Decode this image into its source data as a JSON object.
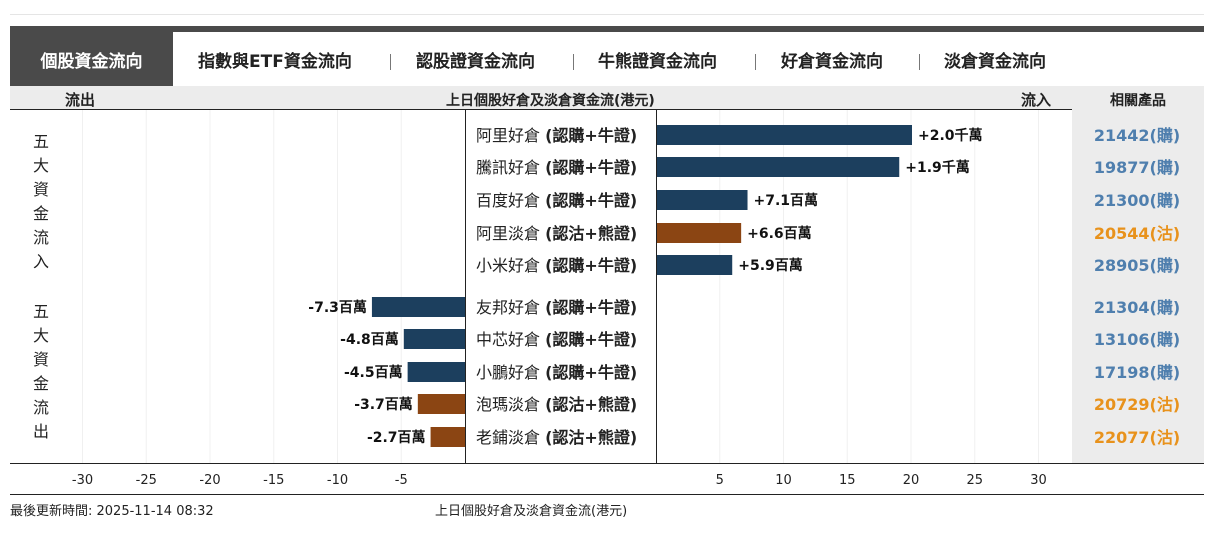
{
  "tabs": {
    "active": "個股資金流向",
    "items": [
      "指數與ETF資金流向",
      "認股證資金流向",
      "牛熊證資金流向",
      "好倉資金流向",
      "淡倉資金流向"
    ]
  },
  "subheader": {
    "outflow": "流出",
    "title": "上日個股好倉及淡倉資金流(港元)",
    "inflow": "流入",
    "products": "相關產品"
  },
  "side_labels": {
    "inflow": [
      "五",
      "大",
      "資",
      "金",
      "流",
      "入"
    ],
    "outflow": [
      "五",
      "大",
      "資",
      "金",
      "流",
      "出"
    ]
  },
  "colors": {
    "bull": "#1c3f5e",
    "bear": "#8b4513",
    "call_code": "#4f7fae",
    "put_code": "#e8921c"
  },
  "chart_data": {
    "type": "bar",
    "orientation": "horizontal",
    "xlim": [
      -30,
      30
    ],
    "x_ticks": [
      -30,
      -25,
      -20,
      -15,
      -10,
      -5,
      5,
      10,
      15,
      20,
      25,
      30
    ],
    "grid": true,
    "title": "上日個股好倉及淡倉資金流(港元)",
    "rows": [
      {
        "stock": "阿里好倉",
        "type_label": "(認購+牛證)",
        "value": 20.0,
        "label": "+2.0千萬",
        "side": "bull",
        "code": "21442(購)"
      },
      {
        "stock": "騰訊好倉",
        "type_label": "(認購+牛證)",
        "value": 19.0,
        "label": "+1.9千萬",
        "side": "bull",
        "code": "19877(購)"
      },
      {
        "stock": "百度好倉",
        "type_label": "(認購+牛證)",
        "value": 7.1,
        "label": "+7.1百萬",
        "side": "bull",
        "code": "21300(購)"
      },
      {
        "stock": "阿里淡倉",
        "type_label": "(認沽+熊證)",
        "value": 6.6,
        "label": "+6.6百萬",
        "side": "bear",
        "code": "20544(沽)"
      },
      {
        "stock": "小米好倉",
        "type_label": "(認購+牛證)",
        "value": 5.9,
        "label": "+5.9百萬",
        "side": "bull",
        "code": "28905(購)"
      },
      {
        "stock": "友邦好倉",
        "type_label": "(認購+牛證)",
        "value": -7.3,
        "label": "-7.3百萬",
        "side": "bull",
        "code": "21304(購)"
      },
      {
        "stock": "中芯好倉",
        "type_label": "(認購+牛證)",
        "value": -4.8,
        "label": "-4.8百萬",
        "side": "bull",
        "code": "13106(購)"
      },
      {
        "stock": "小鵬好倉",
        "type_label": "(認購+牛證)",
        "value": -4.5,
        "label": "-4.5百萬",
        "side": "bull",
        "code": "17198(購)"
      },
      {
        "stock": "泡瑪淡倉",
        "type_label": "(認沽+熊證)",
        "value": -3.7,
        "label": "-3.7百萬",
        "side": "bear",
        "code": "20729(沽)"
      },
      {
        "stock": "老鋪淡倉",
        "type_label": "(認沽+熊證)",
        "value": -2.7,
        "label": "-2.7百萬",
        "side": "bear",
        "code": "22077(沽)"
      }
    ]
  },
  "footer": {
    "updated": "最後更新時間: 2025-11-14 08:32",
    "caption": "上日個股好倉及淡倉資金流(港元)"
  }
}
